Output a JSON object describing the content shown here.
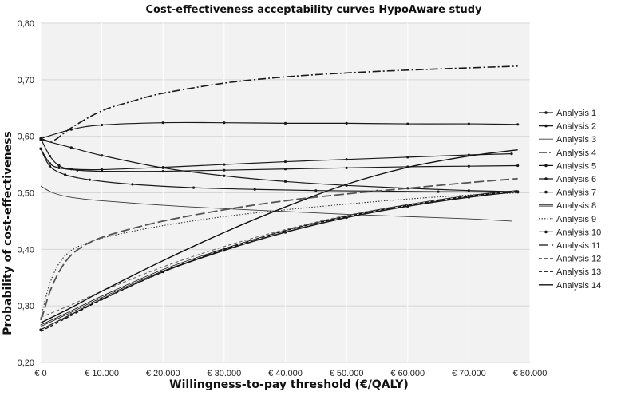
{
  "chart_data": {
    "type": "line",
    "title": "Cost-effectiveness acceptability curves HypoAware study",
    "xlabel": "Willingness-to-pay threshold (€/QALY)",
    "ylabel": "Probability of cost-effectiveness",
    "xlim": [
      0,
      80000
    ],
    "ylim": [
      0.2,
      0.8
    ],
    "x_ticks": [
      0,
      10000,
      20000,
      30000,
      40000,
      50000,
      60000,
      70000,
      80000
    ],
    "x_tick_labels": [
      "€ 0",
      "€ 10.000",
      "€ 20.000",
      "€ 30.000",
      "€ 40.000",
      "€ 50.000",
      "€ 60.000",
      "€ 70.000",
      "€ 80.000"
    ],
    "y_ticks": [
      0.2,
      0.3,
      0.4,
      0.5,
      0.6,
      0.7,
      0.8
    ],
    "y_tick_labels": [
      "0,20",
      "0,30",
      "0,40",
      "0,50",
      "0,60",
      "0,70",
      "0,80"
    ],
    "grid": true,
    "legend_position": "right",
    "series": [
      {
        "name": "Analysis 1",
        "style": "solid-dots",
        "x": [
          0,
          5000,
          10000,
          20000,
          30000,
          40000,
          50000,
          60000,
          70000,
          78000
        ],
        "values": [
          0.596,
          0.612,
          0.62,
          0.624,
          0.624,
          0.623,
          0.623,
          0.622,
          0.622,
          0.621
        ]
      },
      {
        "name": "Analysis 2",
        "style": "solid-dots",
        "x": [
          0,
          1500,
          3000,
          5000,
          10000,
          20000,
          30000,
          40000,
          50000,
          60000,
          70000,
          77000
        ],
        "values": [
          0.596,
          0.565,
          0.548,
          0.542,
          0.541,
          0.545,
          0.55,
          0.555,
          0.559,
          0.563,
          0.567,
          0.569
        ]
      },
      {
        "name": "Analysis 3",
        "style": "solid-thin",
        "x": [
          0,
          2000,
          5000,
          10000,
          20000,
          30000,
          40000,
          50000,
          60000,
          70000,
          77000
        ],
        "values": [
          0.512,
          0.5,
          0.492,
          0.486,
          0.478,
          0.472,
          0.467,
          0.462,
          0.458,
          0.454,
          0.45
        ]
      },
      {
        "name": "Analysis 4",
        "style": "dash-dot",
        "x": [
          0,
          2000,
          5000,
          10000,
          15000,
          20000,
          30000,
          40000,
          50000,
          60000,
          70000,
          78000
        ],
        "values": [
          0.596,
          0.592,
          0.615,
          0.645,
          0.662,
          0.676,
          0.694,
          0.705,
          0.712,
          0.717,
          0.721,
          0.724
        ]
      },
      {
        "name": "Analysis 5",
        "style": "solid-dots",
        "x": [
          0,
          1500,
          3000,
          6000,
          10000,
          20000,
          30000,
          40000,
          50000,
          60000,
          70000,
          78000
        ],
        "values": [
          0.578,
          0.552,
          0.544,
          0.54,
          0.538,
          0.538,
          0.54,
          0.542,
          0.544,
          0.546,
          0.547,
          0.548
        ]
      },
      {
        "name": "Analysis 6",
        "style": "solid-dots",
        "x": [
          0,
          1500,
          4000,
          8000,
          15000,
          25000,
          35000,
          45000,
          55000,
          65000,
          78000
        ],
        "values": [
          0.578,
          0.547,
          0.532,
          0.523,
          0.515,
          0.509,
          0.506,
          0.504,
          0.503,
          0.502,
          0.501
        ]
      },
      {
        "name": "Analysis 7",
        "style": "solid-dots",
        "x": [
          0,
          5000,
          10000,
          20000,
          30000,
          40000,
          50000,
          60000,
          70000,
          78000
        ],
        "values": [
          0.594,
          0.58,
          0.566,
          0.544,
          0.53,
          0.52,
          0.513,
          0.508,
          0.504,
          0.502
        ]
      },
      {
        "name": "Analysis 8",
        "style": "double-line",
        "x": [
          0,
          5000,
          10000,
          20000,
          30000,
          40000,
          50000,
          60000,
          70000,
          78000
        ],
        "values": [
          0.265,
          0.29,
          0.316,
          0.363,
          0.4,
          0.432,
          0.458,
          0.478,
          0.494,
          0.503
        ]
      },
      {
        "name": "Analysis 9",
        "style": "dotted",
        "x": [
          0,
          500,
          1500,
          3000,
          5000,
          8000,
          12000,
          20000,
          30000,
          40000,
          50000,
          60000,
          70000,
          78000
        ],
        "values": [
          0.278,
          0.3,
          0.34,
          0.375,
          0.398,
          0.413,
          0.425,
          0.442,
          0.458,
          0.47,
          0.48,
          0.489,
          0.496,
          0.5
        ]
      },
      {
        "name": "Analysis 10",
        "style": "solid-dots",
        "x": [
          0,
          5000,
          10000,
          20000,
          30000,
          40000,
          50000,
          60000,
          70000,
          78000
        ],
        "values": [
          0.258,
          0.285,
          0.312,
          0.36,
          0.398,
          0.43,
          0.456,
          0.476,
          0.492,
          0.502
        ]
      },
      {
        "name": "Analysis 11",
        "style": "long-dash",
        "x": [
          0,
          500,
          1500,
          3000,
          5000,
          8000,
          12000,
          20000,
          30000,
          40000,
          50000,
          60000,
          70000,
          78000
        ],
        "values": [
          0.275,
          0.29,
          0.325,
          0.36,
          0.39,
          0.412,
          0.428,
          0.45,
          0.47,
          0.486,
          0.498,
          0.508,
          0.518,
          0.525
        ]
      },
      {
        "name": "Analysis 12",
        "style": "short-dash-light",
        "x": [
          0,
          5000,
          10000,
          20000,
          30000,
          40000,
          50000,
          60000,
          70000,
          78000
        ],
        "values": [
          0.28,
          0.302,
          0.326,
          0.369,
          0.405,
          0.435,
          0.46,
          0.479,
          0.494,
          0.503
        ]
      },
      {
        "name": "Analysis 13",
        "style": "short-dash",
        "x": [
          0,
          5000,
          10000,
          20000,
          30000,
          40000,
          50000,
          60000,
          70000,
          78000
        ],
        "values": [
          0.255,
          0.283,
          0.311,
          0.36,
          0.4,
          0.433,
          0.458,
          0.478,
          0.494,
          0.503
        ]
      },
      {
        "name": "Analysis 14",
        "style": "solid",
        "x": [
          0,
          5000,
          10000,
          20000,
          30000,
          40000,
          50000,
          60000,
          70000,
          78000
        ],
        "values": [
          0.27,
          0.297,
          0.326,
          0.38,
          0.43,
          0.475,
          0.515,
          0.545,
          0.565,
          0.576
        ]
      }
    ]
  }
}
